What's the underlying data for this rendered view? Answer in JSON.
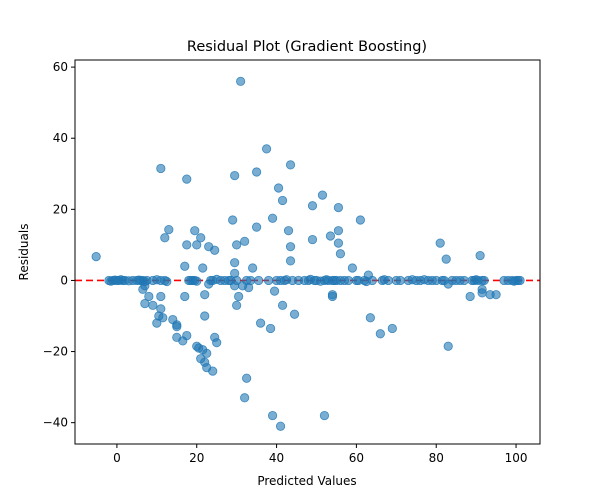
{
  "chart_data": {
    "type": "scatter",
    "title": "Residual Plot (Gradient Boosting)",
    "xlabel": "Predicted Values",
    "ylabel": "Residuals",
    "xlim": [
      -10.5,
      106
    ],
    "ylim": [
      -46,
      62
    ],
    "xticks": [
      0,
      20,
      40,
      60,
      80,
      100
    ],
    "yticks": [
      -40,
      -20,
      0,
      20,
      40,
      60
    ],
    "grid": false,
    "reference_line": {
      "y": 0,
      "color": "#ff0000",
      "style": "dashed"
    },
    "marker_color": "#1f77b4",
    "points": [
      {
        "x": -5.2,
        "y": 6.7
      },
      {
        "x": -2,
        "y": 0
      },
      {
        "x": -1.5,
        "y": -0.2
      },
      {
        "x": -1,
        "y": 0
      },
      {
        "x": -0.5,
        "y": 0.1
      },
      {
        "x": 0,
        "y": 0
      },
      {
        "x": 0.5,
        "y": 0
      },
      {
        "x": 1,
        "y": 0.2
      },
      {
        "x": 1.5,
        "y": 0
      },
      {
        "x": 2,
        "y": 0
      },
      {
        "x": 3,
        "y": -0.1
      },
      {
        "x": 4,
        "y": 0
      },
      {
        "x": 5,
        "y": 0
      },
      {
        "x": 5.5,
        "y": 0.1
      },
      {
        "x": 6,
        "y": 0
      },
      {
        "x": 6.5,
        "y": 0
      },
      {
        "x": 7,
        "y": -0.3
      },
      {
        "x": 7.5,
        "y": 0
      },
      {
        "x": 6.5,
        "y": -2.5
      },
      {
        "x": 7,
        "y": -1.5
      },
      {
        "x": 7,
        "y": -6.5
      },
      {
        "x": 8,
        "y": -4.5
      },
      {
        "x": 9,
        "y": -7
      },
      {
        "x": 10,
        "y": -12
      },
      {
        "x": 10.5,
        "y": -10
      },
      {
        "x": 11,
        "y": -4.5
      },
      {
        "x": 11,
        "y": -8
      },
      {
        "x": 11.5,
        "y": -10.5
      },
      {
        "x": 9,
        "y": 0
      },
      {
        "x": 10,
        "y": 0.2
      },
      {
        "x": 11,
        "y": 0
      },
      {
        "x": 12,
        "y": 0
      },
      {
        "x": 12.5,
        "y": -0.3
      },
      {
        "x": 11,
        "y": 31.5
      },
      {
        "x": 12,
        "y": 12
      },
      {
        "x": 13,
        "y": 14.3
      },
      {
        "x": 14,
        "y": -11
      },
      {
        "x": 15,
        "y": -12.5
      },
      {
        "x": 15,
        "y": -13
      },
      {
        "x": 15,
        "y": -16
      },
      {
        "x": 16.5,
        "y": -17
      },
      {
        "x": 17,
        "y": -4.5
      },
      {
        "x": 17,
        "y": 4
      },
      {
        "x": 17.5,
        "y": 28.5
      },
      {
        "x": 17.5,
        "y": 10
      },
      {
        "x": 17.5,
        "y": -15.5
      },
      {
        "x": 18,
        "y": 0
      },
      {
        "x": 18.5,
        "y": 0
      },
      {
        "x": 19,
        "y": 0
      },
      {
        "x": 19.5,
        "y": 0
      },
      {
        "x": 20,
        "y": -0.2
      },
      {
        "x": 19.5,
        "y": 14
      },
      {
        "x": 20,
        "y": 10
      },
      {
        "x": 20,
        "y": -18.5
      },
      {
        "x": 20.5,
        "y": -19
      },
      {
        "x": 21,
        "y": -22
      },
      {
        "x": 21,
        "y": 12
      },
      {
        "x": 21.5,
        "y": 3.5
      },
      {
        "x": 21.5,
        "y": -19.5
      },
      {
        "x": 22,
        "y": -23
      },
      {
        "x": 22,
        "y": -4
      },
      {
        "x": 22,
        "y": -10
      },
      {
        "x": 22.5,
        "y": -24.5
      },
      {
        "x": 22.5,
        "y": -20.5
      },
      {
        "x": 23,
        "y": -1
      },
      {
        "x": 23,
        "y": 9.5
      },
      {
        "x": 23.5,
        "y": 0
      },
      {
        "x": 24,
        "y": 0
      },
      {
        "x": 24,
        "y": -25.5
      },
      {
        "x": 24.5,
        "y": -16
      },
      {
        "x": 24.5,
        "y": 8.5
      },
      {
        "x": 25,
        "y": -17.5
      },
      {
        "x": 25,
        "y": 0.3
      },
      {
        "x": 26,
        "y": 0
      },
      {
        "x": 27,
        "y": 0
      },
      {
        "x": 28,
        "y": 0
      },
      {
        "x": 28.5,
        "y": 0
      },
      {
        "x": 29,
        "y": 17
      },
      {
        "x": 29.5,
        "y": 2
      },
      {
        "x": 29.5,
        "y": 5
      },
      {
        "x": 29.5,
        "y": -1.5
      },
      {
        "x": 29.5,
        "y": 29.5
      },
      {
        "x": 30,
        "y": 10
      },
      {
        "x": 30,
        "y": -7
      },
      {
        "x": 30.5,
        "y": -4.5
      },
      {
        "x": 30,
        "y": 0
      },
      {
        "x": 31,
        "y": 56
      },
      {
        "x": 31.5,
        "y": -1.5
      },
      {
        "x": 32,
        "y": 11
      },
      {
        "x": 32,
        "y": -33
      },
      {
        "x": 32.5,
        "y": -27.5
      },
      {
        "x": 32.5,
        "y": 0
      },
      {
        "x": 33,
        "y": -2
      },
      {
        "x": 33.5,
        "y": 0
      },
      {
        "x": 34,
        "y": 3.5
      },
      {
        "x": 35,
        "y": 15
      },
      {
        "x": 35,
        "y": 30.5
      },
      {
        "x": 35.5,
        "y": 0
      },
      {
        "x": 36,
        "y": -12
      },
      {
        "x": 37.5,
        "y": 37
      },
      {
        "x": 38,
        "y": 0
      },
      {
        "x": 38.5,
        "y": -13.5
      },
      {
        "x": 39,
        "y": -38
      },
      {
        "x": 39,
        "y": 17.5
      },
      {
        "x": 39.5,
        "y": -3
      },
      {
        "x": 40,
        "y": 0
      },
      {
        "x": 40.5,
        "y": 26
      },
      {
        "x": 41,
        "y": 0
      },
      {
        "x": 41,
        "y": -41
      },
      {
        "x": 41.5,
        "y": 22.5
      },
      {
        "x": 41.5,
        "y": -7
      },
      {
        "x": 42,
        "y": 0
      },
      {
        "x": 42.5,
        "y": 0.2
      },
      {
        "x": 43,
        "y": 14
      },
      {
        "x": 43.5,
        "y": 32.5
      },
      {
        "x": 43.5,
        "y": 9.5
      },
      {
        "x": 43.5,
        "y": 5.5
      },
      {
        "x": 44,
        "y": 0
      },
      {
        "x": 44.5,
        "y": -9.5
      },
      {
        "x": 45.5,
        "y": 0
      },
      {
        "x": 47,
        "y": 0
      },
      {
        "x": 48,
        "y": 0
      },
      {
        "x": 48.5,
        "y": 0.3
      },
      {
        "x": 49,
        "y": 21
      },
      {
        "x": 49,
        "y": 11.5
      },
      {
        "x": 49.5,
        "y": 0
      },
      {
        "x": 50,
        "y": 0
      },
      {
        "x": 51,
        "y": -0.2
      },
      {
        "x": 51.5,
        "y": 24
      },
      {
        "x": 52,
        "y": 0
      },
      {
        "x": 52,
        "y": -38
      },
      {
        "x": 52.5,
        "y": 0.2
      },
      {
        "x": 53,
        "y": 0
      },
      {
        "x": 53.5,
        "y": 12.5
      },
      {
        "x": 54,
        "y": -4
      },
      {
        "x": 54,
        "y": -4.5
      },
      {
        "x": 54,
        "y": 0
      },
      {
        "x": 54.5,
        "y": 0
      },
      {
        "x": 55,
        "y": 0
      },
      {
        "x": 55.5,
        "y": 20.5
      },
      {
        "x": 55.5,
        "y": 14
      },
      {
        "x": 55.5,
        "y": 10.5
      },
      {
        "x": 56,
        "y": 7.5
      },
      {
        "x": 56,
        "y": 0
      },
      {
        "x": 57,
        "y": 0
      },
      {
        "x": 58,
        "y": 0
      },
      {
        "x": 59,
        "y": 3.5
      },
      {
        "x": 60,
        "y": 0
      },
      {
        "x": 60.5,
        "y": 0
      },
      {
        "x": 61,
        "y": 17
      },
      {
        "x": 62,
        "y": 0
      },
      {
        "x": 62.5,
        "y": -0.3
      },
      {
        "x": 63,
        "y": 1.5
      },
      {
        "x": 63.5,
        "y": -10.5
      },
      {
        "x": 64,
        "y": 0
      },
      {
        "x": 66,
        "y": -15
      },
      {
        "x": 66.5,
        "y": 0
      },
      {
        "x": 67,
        "y": 0.2
      },
      {
        "x": 68,
        "y": 0
      },
      {
        "x": 69,
        "y": -13.5
      },
      {
        "x": 70,
        "y": 0
      },
      {
        "x": 71,
        "y": 0
      },
      {
        "x": 73,
        "y": 0
      },
      {
        "x": 74,
        "y": 0.2
      },
      {
        "x": 75,
        "y": 0
      },
      {
        "x": 76,
        "y": 0
      },
      {
        "x": 77,
        "y": 0.2
      },
      {
        "x": 78,
        "y": 0
      },
      {
        "x": 79,
        "y": 0
      },
      {
        "x": 80,
        "y": 0
      },
      {
        "x": 81,
        "y": 10.5
      },
      {
        "x": 81.5,
        "y": 0
      },
      {
        "x": 82,
        "y": 0
      },
      {
        "x": 82.5,
        "y": 6
      },
      {
        "x": 83,
        "y": -1
      },
      {
        "x": 83,
        "y": -18.5
      },
      {
        "x": 84,
        "y": 0
      },
      {
        "x": 85,
        "y": 0
      },
      {
        "x": 86,
        "y": 0
      },
      {
        "x": 87,
        "y": 0
      },
      {
        "x": 88.5,
        "y": -4.5
      },
      {
        "x": 89,
        "y": 0
      },
      {
        "x": 89.5,
        "y": 0
      },
      {
        "x": 90,
        "y": 0.2
      },
      {
        "x": 90.5,
        "y": 0
      },
      {
        "x": 91,
        "y": 7
      },
      {
        "x": 91.5,
        "y": 0
      },
      {
        "x": 91.5,
        "y": -2.5
      },
      {
        "x": 91.5,
        "y": -3.5
      },
      {
        "x": 92,
        "y": 0
      },
      {
        "x": 93.5,
        "y": -4
      },
      {
        "x": 95,
        "y": -4
      },
      {
        "x": 97,
        "y": 0
      },
      {
        "x": 98,
        "y": 0
      },
      {
        "x": 99,
        "y": 0
      },
      {
        "x": 99.5,
        "y": -0.2
      },
      {
        "x": 100,
        "y": 0
      },
      {
        "x": 100.5,
        "y": 0
      },
      {
        "x": 101,
        "y": 0
      }
    ]
  }
}
